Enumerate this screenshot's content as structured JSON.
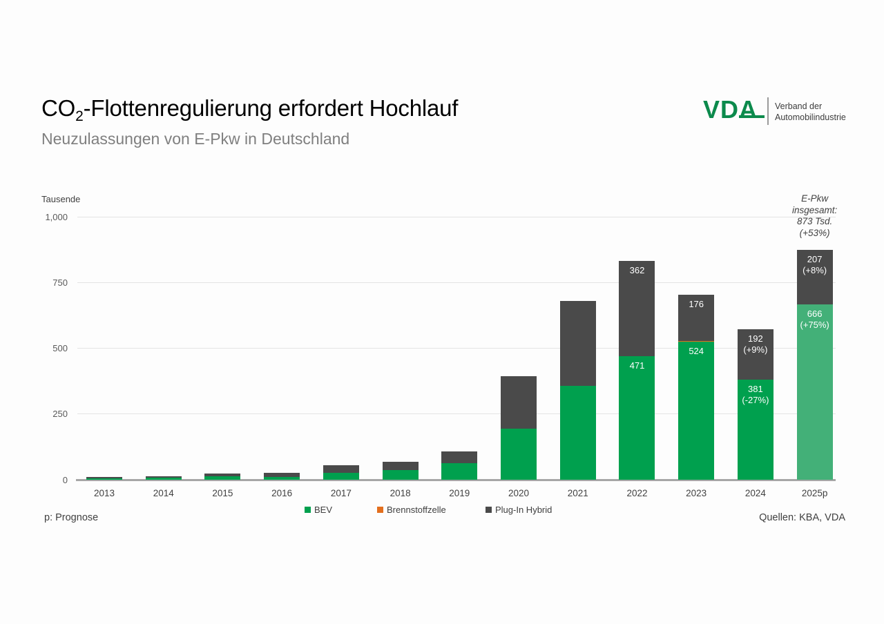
{
  "header": {
    "title_pre": "CO",
    "title_sub": "2",
    "title_post": "-Flottenregulierung erfordert Hochlauf",
    "subtitle": "Neuzulassungen von E-Pkw in Deutschland"
  },
  "logo": {
    "brand": "VDA",
    "tagline_line1": "Verband der",
    "tagline_line2": "Automobilindustrie",
    "brand_color": "#0c8a4c"
  },
  "footer": {
    "footnote": "p: Prognose",
    "source": "Quellen: KBA, VDA"
  },
  "chart_data": {
    "type": "bar",
    "stacked": true,
    "title": "Neuzulassungen von E-Pkw in Deutschland",
    "unit_label": "Tausende",
    "categories": [
      "2013",
      "2014",
      "2015",
      "2016",
      "2017",
      "2018",
      "2019",
      "2020",
      "2021",
      "2022",
      "2023",
      "2024",
      "2025p"
    ],
    "forecast_category": "2025p",
    "series": [
      {
        "name": "BEV",
        "color": "#00a04e",
        "forecast_color": "#43b078",
        "values": [
          6,
          9,
          12,
          11,
          25,
          36,
          63,
          194,
          356,
          471,
          524,
          381,
          666
        ]
      },
      {
        "name": "Brennstoffzelle",
        "color": "#e36f1e",
        "values": [
          0,
          0,
          0,
          0,
          0,
          0,
          0,
          0,
          0,
          0,
          1,
          0,
          0
        ]
      },
      {
        "name": "Plug-In Hybrid",
        "color": "#4a4a4a",
        "values": [
          2,
          5,
          11,
          14,
          29,
          32,
          45,
          200,
          325,
          362,
          176,
          192,
          207
        ]
      }
    ],
    "bar_labels": [
      {},
      {},
      {},
      {},
      {},
      {},
      {},
      {},
      {},
      {
        "BEV": [
          "471"
        ],
        "Plug-In Hybrid": [
          "362"
        ]
      },
      {
        "BEV": [
          "524"
        ],
        "Plug-In Hybrid": [
          "176"
        ]
      },
      {
        "BEV": [
          "381",
          "(-27%)"
        ],
        "Plug-In Hybrid": [
          "192",
          "(+9%)"
        ]
      },
      {
        "BEV": [
          "666",
          "(+75%)"
        ],
        "Plug-In Hybrid": [
          "207",
          "(+8%)"
        ]
      }
    ],
    "y_axis": {
      "max": 1000,
      "ticks": [
        {
          "label": "1,000",
          "value": 1000
        },
        {
          "label": "750",
          "value": 750
        },
        {
          "label": "500",
          "value": 500
        },
        {
          "label": "250",
          "value": 250
        },
        {
          "label": "0",
          "value": 0
        }
      ]
    },
    "annotation": {
      "lines": [
        "E-Pkw",
        "insgesamt:",
        "873 Tsd.",
        "(+53%)"
      ]
    },
    "legend": [
      {
        "label": "BEV",
        "color": "#00a04e"
      },
      {
        "label": "Brennstoffzelle",
        "color": "#e36f1e"
      },
      {
        "label": "Plug-In Hybrid",
        "color": "#4a4a4a"
      }
    ]
  }
}
